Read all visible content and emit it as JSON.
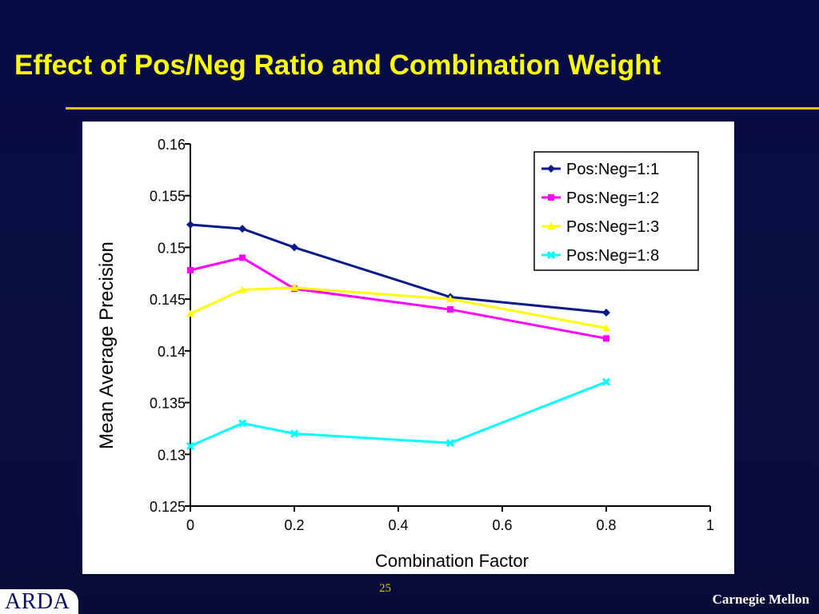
{
  "slide": {
    "title": "Effect of Pos/Neg Ratio and Combination Weight",
    "page_number": "25",
    "footer_org": "Carnegie Mellon",
    "logo_text": "ARDA"
  },
  "colors": {
    "background": "#070b45",
    "title": "#ffff00",
    "rule": "#e0c000"
  },
  "chart_data": {
    "type": "line",
    "xlabel": "Combination Factor",
    "ylabel": "Mean Average Precision",
    "xlim": [
      0,
      1
    ],
    "ylim": [
      0.125,
      0.16
    ],
    "xticks": [
      0,
      0.2,
      0.4,
      0.6,
      0.8,
      1
    ],
    "xtick_labels": [
      "0",
      "0.2",
      "0.4",
      "0.6",
      "0.8",
      "1"
    ],
    "yticks": [
      0.125,
      0.13,
      0.135,
      0.14,
      0.145,
      0.15,
      0.155,
      0.16
    ],
    "ytick_labels": [
      "0.125",
      "0.13",
      "0.135",
      "0.14",
      "0.145",
      "0.15",
      "0.155",
      "0.16"
    ],
    "grid": false,
    "legend_position": "top-right",
    "x": [
      0,
      0.1,
      0.2,
      0.5,
      0.8
    ],
    "series": [
      {
        "name": "Pos:Neg=1:1",
        "color": "#0a1a8a",
        "marker": "diamond",
        "values": [
          0.1522,
          0.1518,
          0.15,
          0.1452,
          0.1437
        ]
      },
      {
        "name": "Pos:Neg=1:2",
        "color": "#ff00ff",
        "marker": "square",
        "values": [
          0.1478,
          0.149,
          0.146,
          0.144,
          0.1412
        ]
      },
      {
        "name": "Pos:Neg=1:3",
        "color": "#ffff00",
        "marker": "triangle",
        "values": [
          0.1436,
          0.1459,
          0.1461,
          0.145,
          0.1422
        ]
      },
      {
        "name": "Pos:Neg=1:8",
        "color": "#00ffff",
        "marker": "x",
        "values": [
          0.1308,
          0.133,
          0.132,
          0.1311,
          0.137
        ]
      }
    ]
  }
}
